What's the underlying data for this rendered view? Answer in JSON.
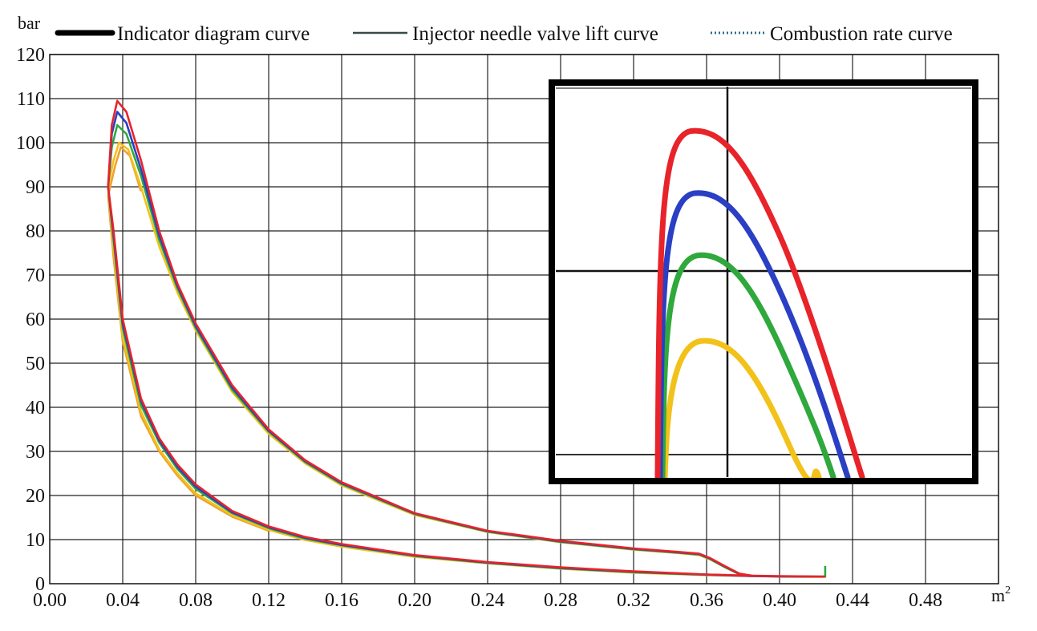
{
  "chart_data": {
    "type": "line",
    "title": "",
    "xlabel": "m",
    "xlabel_sup": "2",
    "ylabel": "bar",
    "xlim": [
      0.0,
      0.52
    ],
    "ylim": [
      0,
      120
    ],
    "x_ticks": [
      "0.00",
      "0.04",
      "0.08",
      "0.12",
      "0.16",
      "0.20",
      "0.24",
      "0.28",
      "0.32",
      "0.36",
      "0.40",
      "0.44",
      "0.48"
    ],
    "y_ticks": [
      "0",
      "10",
      "20",
      "30",
      "40",
      "50",
      "60",
      "70",
      "80",
      "90",
      "100",
      "110",
      "120"
    ],
    "grid": true,
    "legend_position": "top",
    "legend": [
      {
        "label": "Indicator diagram curve",
        "style": "thick-solid",
        "color": "#000000"
      },
      {
        "label": "Injector needle valve lift curve",
        "style": "solid",
        "color": "#3a4a4a"
      },
      {
        "label": "Combustion rate curve",
        "style": "dotted",
        "color": "#2a6a8a"
      }
    ],
    "series": [
      {
        "name": "red",
        "color": "#e8232a",
        "peak": 109.5,
        "upper": [
          [
            0.032,
            90
          ],
          [
            0.034,
            104
          ],
          [
            0.037,
            109.5
          ],
          [
            0.042,
            107
          ],
          [
            0.05,
            96
          ],
          [
            0.06,
            80
          ],
          [
            0.07,
            68
          ],
          [
            0.08,
            59
          ],
          [
            0.1,
            45
          ],
          [
            0.12,
            35
          ],
          [
            0.14,
            28
          ],
          [
            0.16,
            23
          ],
          [
            0.2,
            16
          ],
          [
            0.24,
            12
          ],
          [
            0.28,
            9.7
          ],
          [
            0.32,
            8
          ],
          [
            0.345,
            7.2
          ],
          [
            0.356,
            6.8
          ],
          [
            0.362,
            5.8
          ],
          [
            0.37,
            4
          ],
          [
            0.378,
            2.3
          ],
          [
            0.385,
            1.8
          ]
        ],
        "lower": [
          [
            0.032,
            90
          ],
          [
            0.035,
            80
          ],
          [
            0.04,
            60
          ],
          [
            0.05,
            42
          ],
          [
            0.06,
            33
          ],
          [
            0.07,
            27
          ],
          [
            0.08,
            22.5
          ],
          [
            0.1,
            16.5
          ],
          [
            0.12,
            13
          ],
          [
            0.14,
            10.6
          ],
          [
            0.16,
            9
          ],
          [
            0.2,
            6.5
          ],
          [
            0.24,
            4.9
          ],
          [
            0.28,
            3.7
          ],
          [
            0.32,
            2.8
          ],
          [
            0.36,
            2.1
          ],
          [
            0.385,
            1.8
          ],
          [
            0.4,
            1.7
          ],
          [
            0.425,
            1.6
          ]
        ]
      },
      {
        "name": "blue",
        "color": "#2a3fc4",
        "peak": 107,
        "upper": [
          [
            0.032,
            90
          ],
          [
            0.034,
            102
          ],
          [
            0.037,
            107
          ],
          [
            0.042,
            104.5
          ],
          [
            0.05,
            94
          ],
          [
            0.06,
            79
          ],
          [
            0.07,
            67.5
          ],
          [
            0.08,
            58.5
          ],
          [
            0.1,
            44.5
          ],
          [
            0.12,
            34.7
          ],
          [
            0.14,
            27.8
          ],
          [
            0.16,
            22.8
          ],
          [
            0.2,
            15.9
          ],
          [
            0.24,
            11.9
          ],
          [
            0.28,
            9.6
          ],
          [
            0.32,
            7.9
          ],
          [
            0.345,
            7.1
          ],
          [
            0.356,
            6.7
          ],
          [
            0.362,
            5.7
          ],
          [
            0.37,
            3.9
          ],
          [
            0.378,
            2.2
          ],
          [
            0.385,
            1.8
          ]
        ],
        "lower": [
          [
            0.032,
            90
          ],
          [
            0.035,
            79
          ],
          [
            0.04,
            59
          ],
          [
            0.05,
            41.5
          ],
          [
            0.06,
            32.5
          ],
          [
            0.07,
            26.5
          ],
          [
            0.08,
            22
          ],
          [
            0.1,
            16.2
          ],
          [
            0.12,
            12.8
          ],
          [
            0.14,
            10.4
          ],
          [
            0.16,
            8.8
          ],
          [
            0.2,
            6.4
          ],
          [
            0.24,
            4.8
          ],
          [
            0.28,
            3.6
          ],
          [
            0.32,
            2.7
          ],
          [
            0.36,
            2.05
          ],
          [
            0.385,
            1.75
          ],
          [
            0.4,
            1.65
          ],
          [
            0.425,
            1.6
          ]
        ]
      },
      {
        "name": "green",
        "color": "#2fa83c",
        "peak": 104,
        "upper": [
          [
            0.032,
            90
          ],
          [
            0.034,
            99
          ],
          [
            0.037,
            104
          ],
          [
            0.042,
            102
          ],
          [
            0.05,
            92.5
          ],
          [
            0.06,
            78
          ],
          [
            0.07,
            67
          ],
          [
            0.08,
            58
          ],
          [
            0.1,
            44
          ],
          [
            0.12,
            34.5
          ],
          [
            0.14,
            27.6
          ],
          [
            0.16,
            22.6
          ],
          [
            0.2,
            15.8
          ],
          [
            0.24,
            11.8
          ],
          [
            0.28,
            9.5
          ],
          [
            0.32,
            7.8
          ],
          [
            0.345,
            7.0
          ],
          [
            0.356,
            6.6
          ],
          [
            0.362,
            5.6
          ],
          [
            0.37,
            3.8
          ],
          [
            0.378,
            2.2
          ],
          [
            0.385,
            1.8
          ]
        ],
        "lower": [
          [
            0.032,
            90
          ],
          [
            0.035,
            78
          ],
          [
            0.04,
            58
          ],
          [
            0.05,
            40.5
          ],
          [
            0.06,
            32
          ],
          [
            0.07,
            26
          ],
          [
            0.08,
            21.5
          ],
          [
            0.1,
            16
          ],
          [
            0.12,
            12.6
          ],
          [
            0.14,
            10.2
          ],
          [
            0.16,
            8.7
          ],
          [
            0.2,
            6.3
          ],
          [
            0.24,
            4.7
          ],
          [
            0.28,
            3.5
          ],
          [
            0.32,
            2.6
          ],
          [
            0.36,
            2.0
          ],
          [
            0.385,
            1.75
          ],
          [
            0.4,
            1.65
          ],
          [
            0.425,
            1.6
          ],
          [
            0.425,
            4
          ]
        ]
      },
      {
        "name": "yellow",
        "color": "#f2c21a",
        "peak": 100,
        "upper": [
          [
            0.032,
            90
          ],
          [
            0.035,
            96
          ],
          [
            0.038,
            100
          ],
          [
            0.043,
            98.5
          ],
          [
            0.05,
            90
          ],
          [
            0.06,
            76.5
          ],
          [
            0.07,
            66
          ],
          [
            0.08,
            57.5
          ],
          [
            0.1,
            43.5
          ],
          [
            0.12,
            34
          ],
          [
            0.14,
            27.3
          ],
          [
            0.16,
            22.3
          ],
          [
            0.2,
            15.6
          ],
          [
            0.24,
            11.7
          ],
          [
            0.28,
            9.4
          ],
          [
            0.32,
            7.7
          ],
          [
            0.345,
            6.9
          ],
          [
            0.356,
            6.5
          ],
          [
            0.362,
            5.5
          ],
          [
            0.37,
            3.7
          ],
          [
            0.378,
            2.1
          ],
          [
            0.385,
            1.7
          ]
        ],
        "lower": [
          [
            0.032,
            90
          ],
          [
            0.035,
            76
          ],
          [
            0.04,
            56
          ],
          [
            0.05,
            39
          ],
          [
            0.06,
            30.5
          ],
          [
            0.07,
            25
          ],
          [
            0.08,
            20.5
          ],
          [
            0.1,
            15.5
          ],
          [
            0.12,
            12.2
          ],
          [
            0.14,
            9.9
          ],
          [
            0.16,
            8.4
          ],
          [
            0.2,
            6.1
          ],
          [
            0.24,
            4.6
          ],
          [
            0.28,
            3.4
          ],
          [
            0.32,
            2.5
          ],
          [
            0.36,
            1.95
          ],
          [
            0.385,
            1.7
          ],
          [
            0.4,
            1.6
          ],
          [
            0.425,
            1.55
          ]
        ]
      },
      {
        "name": "orange",
        "color": "#f0a030",
        "peak": 99,
        "upper": [
          [
            0.032,
            88
          ],
          [
            0.036,
            95
          ],
          [
            0.039,
            99
          ],
          [
            0.044,
            97
          ],
          [
            0.05,
            89
          ]
        ],
        "lower": [
          [
            0.032,
            88
          ],
          [
            0.035,
            74
          ],
          [
            0.04,
            55
          ],
          [
            0.05,
            38
          ],
          [
            0.06,
            30
          ],
          [
            0.07,
            24.5
          ],
          [
            0.08,
            20
          ],
          [
            0.1,
            15.2
          ],
          [
            0.12,
            12
          ]
        ]
      }
    ],
    "inset": {
      "description_none": "",
      "series_peaks": [
        {
          "name": "red",
          "color": "#e8232a",
          "peak_level": 0.89
        },
        {
          "name": "blue",
          "color": "#2a3fc4",
          "peak_level": 0.73
        },
        {
          "name": "green",
          "color": "#2fa83c",
          "peak_level": 0.57
        },
        {
          "name": "yellow",
          "color": "#f2c21a",
          "peak_level": 0.35
        }
      ]
    }
  }
}
